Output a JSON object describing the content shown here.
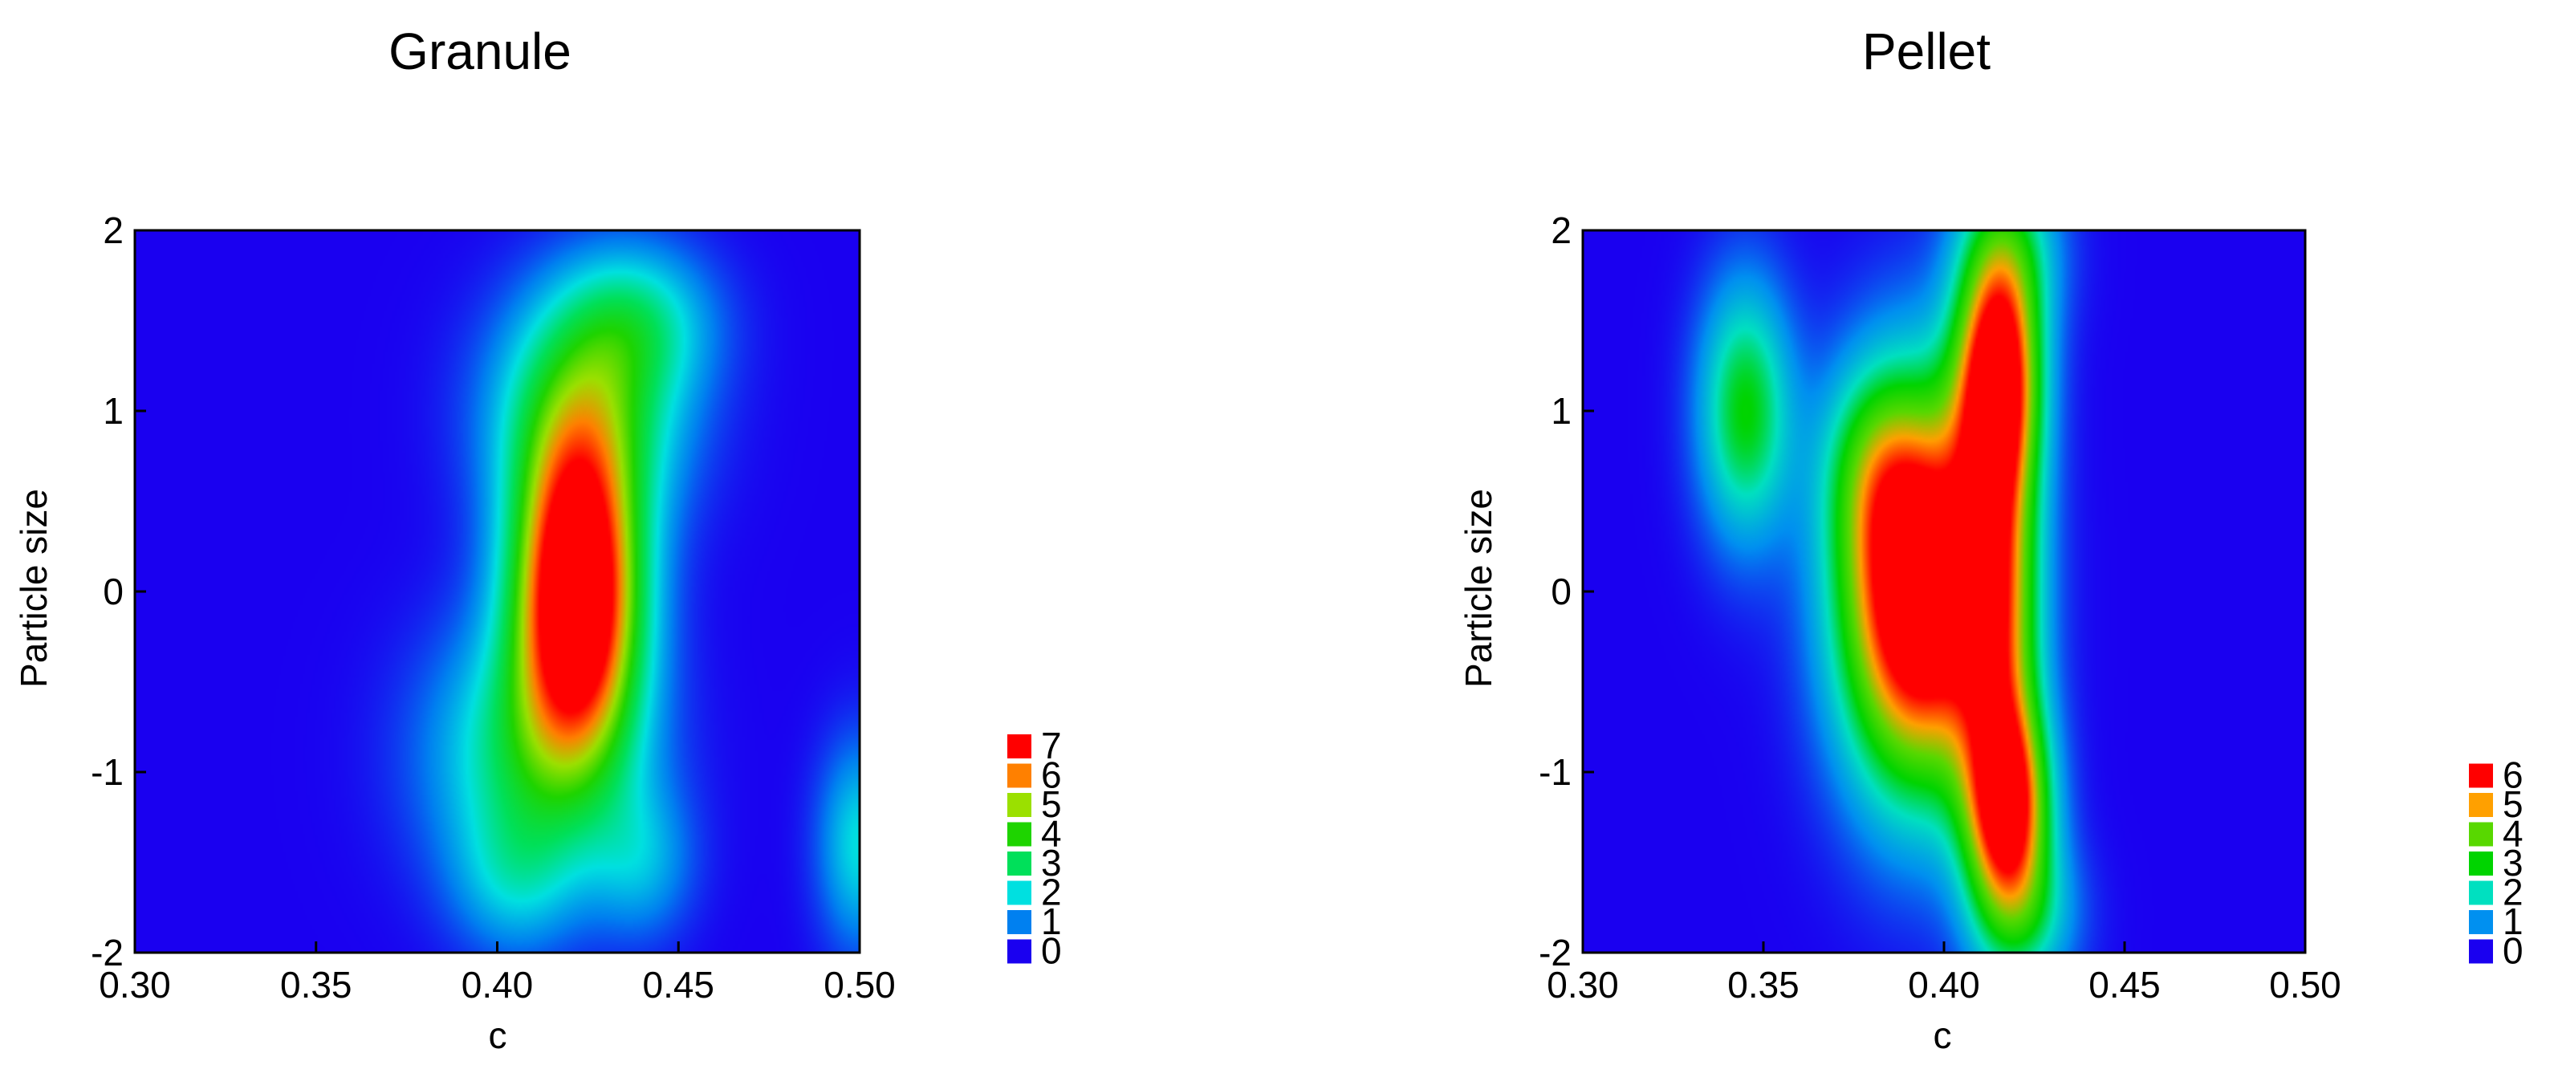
{
  "chart_data": [
    {
      "type": "heatmap",
      "title": "Granule",
      "xlabel": "c",
      "ylabel": "Particle size",
      "xlim": [
        0.3,
        0.5
      ],
      "ylim": [
        -2,
        2
      ],
      "x_ticks": [
        "0.30",
        "0.35",
        "0.40",
        "0.45",
        "0.50"
      ],
      "y_ticks": [
        "2",
        "1",
        "0",
        "-1",
        "-2"
      ],
      "legend": {
        "placement": "right-bottom",
        "levels": [
          {
            "label": "7",
            "color": "#ff0000"
          },
          {
            "label": "6",
            "color": "#ff8000"
          },
          {
            "label": "5",
            "color": "#9be000"
          },
          {
            "label": "4",
            "color": "#1ed400"
          },
          {
            "label": "3",
            "color": "#00e05a"
          },
          {
            "label": "2",
            "color": "#00e0e0"
          },
          {
            "label": "1",
            "color": "#0080f0"
          },
          {
            "label": "0",
            "color": "#1a00f0"
          }
        ]
      },
      "peaks": [
        {
          "x": 0.422,
          "y": 0.0,
          "sx": 0.012,
          "sy": 0.6,
          "amp": 9.0
        },
        {
          "x": 0.425,
          "y": 1.0,
          "sx": 0.018,
          "sy": 0.45,
          "amp": 3.2
        },
        {
          "x": 0.438,
          "y": 1.5,
          "sx": 0.015,
          "sy": 0.3,
          "amp": 2.0
        },
        {
          "x": 0.41,
          "y": -0.9,
          "sx": 0.02,
          "sy": 0.5,
          "amp": 2.8
        },
        {
          "x": 0.405,
          "y": -1.6,
          "sx": 0.012,
          "sy": 0.3,
          "amp": 1.3
        },
        {
          "x": 0.44,
          "y": -1.5,
          "sx": 0.01,
          "sy": 0.3,
          "amp": 1.3
        },
        {
          "x": 0.5,
          "y": -1.4,
          "sx": 0.008,
          "sy": 0.4,
          "amp": 2.0
        }
      ]
    },
    {
      "type": "heatmap",
      "title": "Pellet",
      "xlabel": "c",
      "ylabel": "Particle size",
      "xlim": [
        0.3,
        0.5
      ],
      "ylim": [
        -2,
        2
      ],
      "x_ticks": [
        "0.30",
        "0.35",
        "0.40",
        "0.45",
        "0.50"
      ],
      "y_ticks": [
        "2",
        "1",
        "0",
        "-1",
        "-2"
      ],
      "legend": {
        "placement": "right-bottom",
        "levels": [
          {
            "label": "6",
            "color": "#ff0000"
          },
          {
            "label": "5",
            "color": "#ffa000"
          },
          {
            "label": "4",
            "color": "#58d800"
          },
          {
            "label": "3",
            "color": "#00d400"
          },
          {
            "label": "2",
            "color": "#00e0c0"
          },
          {
            "label": "1",
            "color": "#0090f0"
          },
          {
            "label": "0",
            "color": "#1a00f0"
          }
        ]
      },
      "peaks": [
        {
          "x": 0.393,
          "y": 0.0,
          "sx": 0.015,
          "sy": 0.75,
          "amp": 8.0
        },
        {
          "x": 0.415,
          "y": 1.2,
          "sx": 0.008,
          "sy": 0.45,
          "amp": 5.2
        },
        {
          "x": 0.418,
          "y": -1.2,
          "sx": 0.008,
          "sy": 0.4,
          "amp": 5.2
        },
        {
          "x": 0.415,
          "y": 0.0,
          "sx": 0.008,
          "sy": 1.0,
          "amp": 4.0
        },
        {
          "x": 0.418,
          "y": 1.9,
          "sx": 0.01,
          "sy": 0.35,
          "amp": 2.0
        },
        {
          "x": 0.423,
          "y": -1.8,
          "sx": 0.01,
          "sy": 0.3,
          "amp": 1.8
        },
        {
          "x": 0.345,
          "y": 1.0,
          "sx": 0.009,
          "sy": 0.5,
          "amp": 3.0
        },
        {
          "x": 0.38,
          "y": 0.7,
          "sx": 0.01,
          "sy": 0.4,
          "amp": 1.5
        }
      ]
    }
  ]
}
